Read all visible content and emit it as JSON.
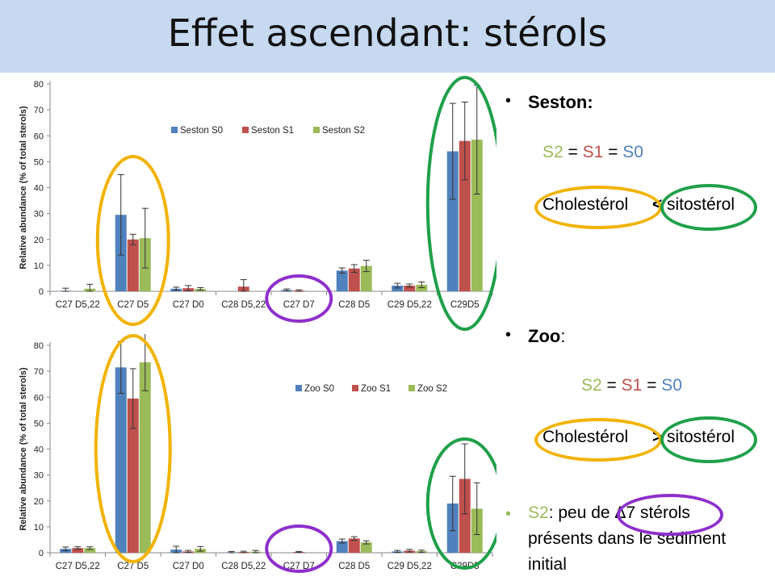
{
  "slide_title": "Effet ascendant: stérols",
  "colors": {
    "s0": "#4f81bd",
    "s1": "#c0504d",
    "s2": "#9bbb59",
    "gold": "#f2b300",
    "green": "#1fa04a",
    "purple": "#8e2fcc",
    "title_bg": "#c6d9f0"
  },
  "chart_data": [
    {
      "type": "bar",
      "ylabel": "Relative abundance (% of total sterols)",
      "ylim": [
        0,
        80
      ],
      "yticks": [
        0,
        10,
        20,
        30,
        40,
        50,
        60,
        70,
        80
      ],
      "categories": [
        "C27 D5,22",
        "C27 D5",
        "C27 D0",
        "C28 D5,22",
        "C27 D7",
        "C28 D5",
        "C29 D5,22",
        "C29D5"
      ],
      "legend_position": "top-center",
      "series": [
        {
          "name": "Seston S0",
          "values": [
            0.2,
            29.5,
            1.0,
            0.0,
            0.5,
            8.0,
            2.2,
            54.0
          ],
          "errors": [
            1.0,
            15.5,
            0.6,
            0.0,
            0.4,
            1.0,
            0.9,
            18.5
          ]
        },
        {
          "name": "Seston S1",
          "values": [
            0.0,
            20.0,
            1.2,
            1.8,
            0.3,
            8.8,
            2.2,
            58.0
          ],
          "errors": [
            0.0,
            2.0,
            1.0,
            2.7,
            0.3,
            1.5,
            0.6,
            15.0
          ]
        },
        {
          "name": "Seston S2",
          "values": [
            1.0,
            20.5,
            0.9,
            0.0,
            0.0,
            9.8,
            2.5,
            58.5
          ],
          "errors": [
            1.7,
            11.5,
            0.5,
            0.0,
            0.0,
            2.2,
            1.1,
            21.0
          ]
        }
      ]
    },
    {
      "type": "bar",
      "ylabel": "Relative abundance (% of total sterols)",
      "ylim": [
        0,
        80
      ],
      "yticks": [
        0,
        10,
        20,
        30,
        40,
        50,
        60,
        70,
        80
      ],
      "categories": [
        "C27 D5,22",
        "C27 D5",
        "C27 D0",
        "C28 D5,22",
        "C27 D7",
        "C28 D5",
        "C29 D5,22",
        "C29D5"
      ],
      "legend_position": "center-right",
      "series": [
        {
          "name": "Zoo S0",
          "values": [
            1.5,
            71.5,
            1.2,
            0.2,
            0.0,
            4.5,
            0.5,
            19.0
          ],
          "errors": [
            0.7,
            10.0,
            1.3,
            0.3,
            0.0,
            0.8,
            0.4,
            10.5
          ]
        },
        {
          "name": "Zoo S1",
          "values": [
            1.8,
            59.5,
            0.5,
            0.3,
            0.3,
            5.5,
            0.8,
            28.5
          ],
          "errors": [
            0.5,
            11.5,
            0.4,
            0.3,
            0.2,
            0.7,
            0.5,
            13.5
          ]
        },
        {
          "name": "Zoo S2",
          "values": [
            1.8,
            73.5,
            1.5,
            0.4,
            0.0,
            4.0,
            0.6,
            17.0
          ],
          "errors": [
            0.5,
            11.0,
            0.9,
            0.5,
            0.0,
            0.6,
            0.4,
            10.0
          ]
        }
      ]
    }
  ],
  "right_panel": {
    "seston": {
      "bullet": "•",
      "heading": "Seston:",
      "equation": {
        "s2": "S2",
        "eq1": "=",
        "s1": "S1",
        "eq2": "=",
        "s0": "S0"
      },
      "comparison": {
        "left": "Cholestérol",
        "operator": "<",
        "right": "sitostérol"
      }
    },
    "zoo": {
      "bullet": "•",
      "heading": "Zoo",
      "colon": ":",
      "equation": {
        "s2": "S2",
        "eq1": "=",
        "s1": "S1",
        "eq2": "=",
        "s0": "S0"
      },
      "comparison": {
        "left": "Cholestérol",
        "operator": ">",
        "right": "sitostérol"
      }
    },
    "note": {
      "bullet": "•",
      "label": "S2",
      "text_before": ": peu de ",
      "delta": "Δ7 stérols",
      "line2": "présents dans le sédiment",
      "line3": "initial"
    }
  }
}
